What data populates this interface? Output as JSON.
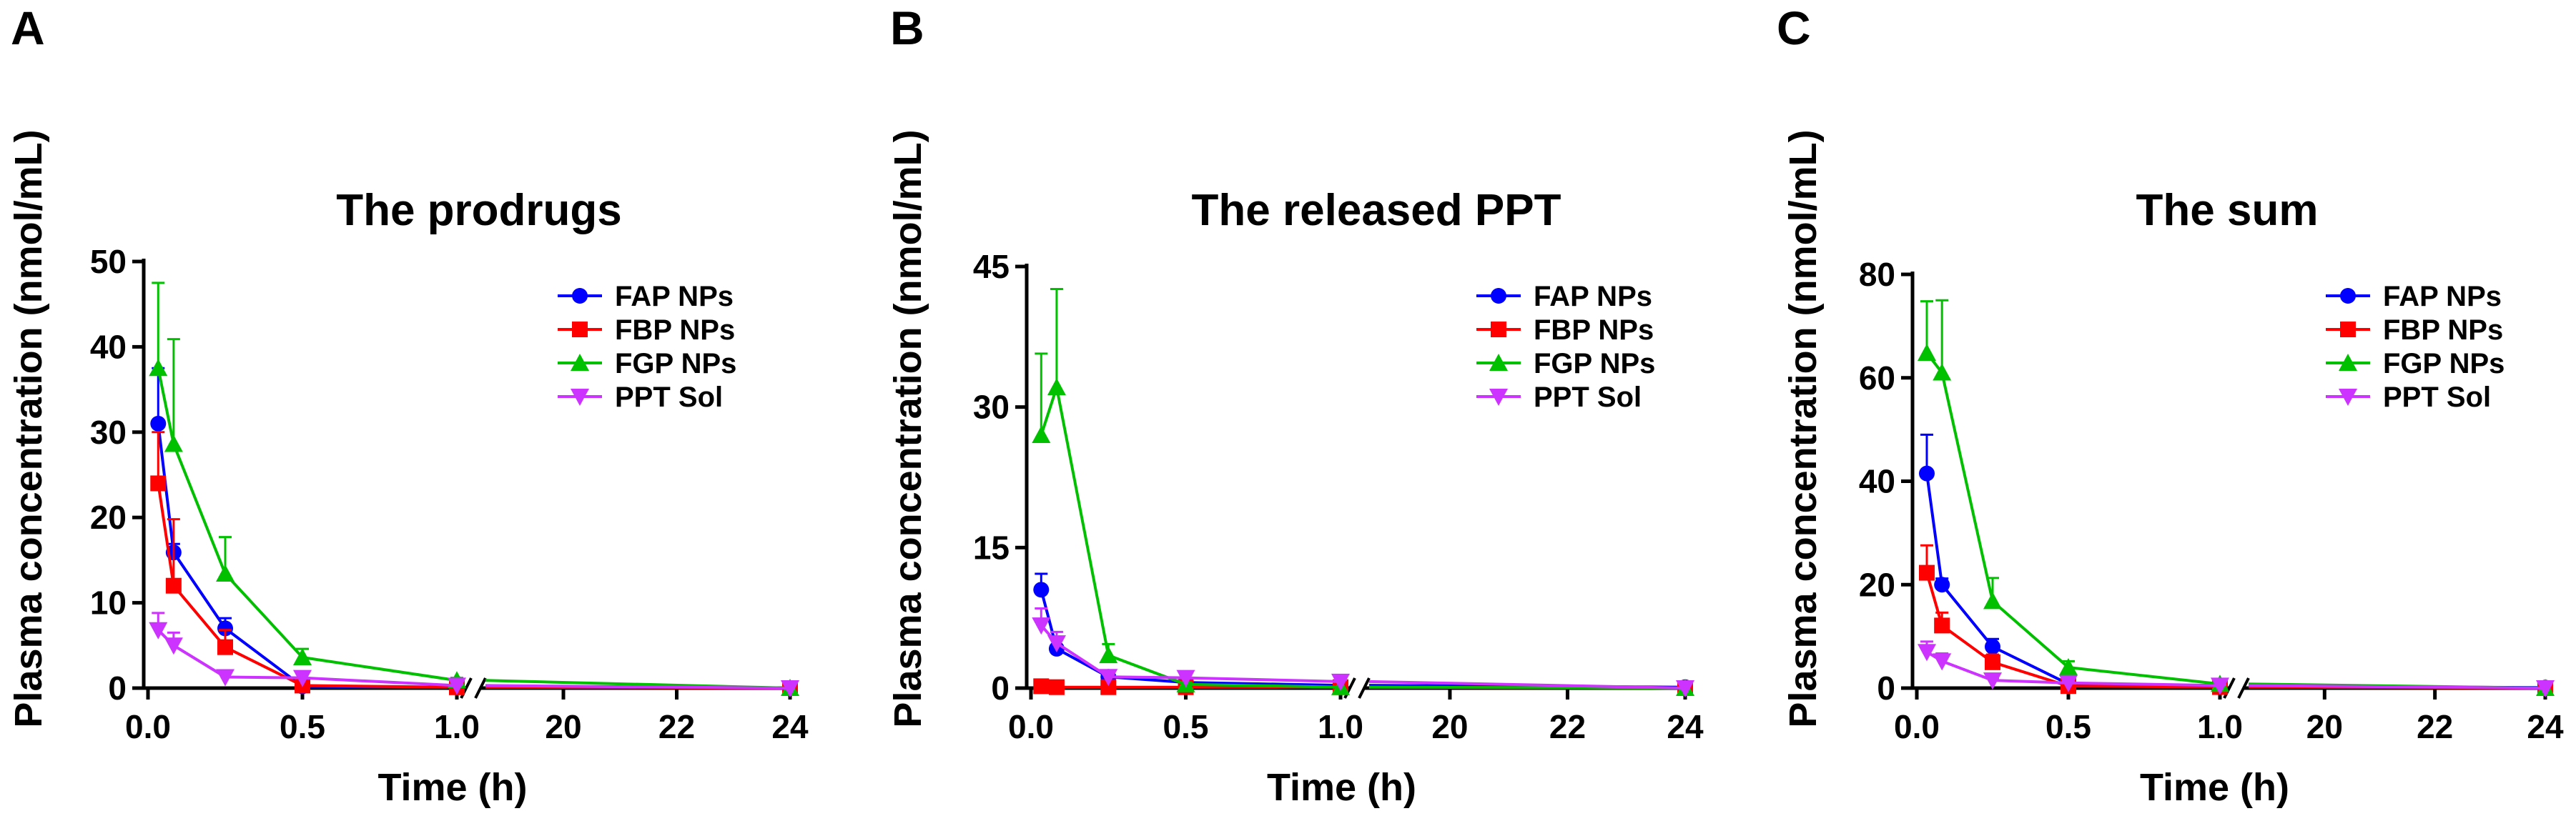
{
  "chart_data": [
    {
      "type": "line",
      "panel": "A",
      "title": "The prodrugs",
      "xlabel": "Time (h)",
      "ylabel": "Plasma concentration (nmol/mL)",
      "ylim": [
        0,
        50
      ],
      "yticks": [
        0,
        10,
        20,
        30,
        40,
        50
      ],
      "xticks_left": [
        "0.0",
        "0.5",
        "1.0"
      ],
      "xticks_right": [
        "20",
        "22",
        "24"
      ],
      "xbreak": {
        "left_range": [
          0,
          1.0
        ],
        "right_range": [
          18.7,
          24
        ]
      },
      "series": [
        {
          "name": "FAP NPs",
          "color": "#0000ff",
          "marker": "circle",
          "x": [
            0.033,
            0.083,
            0.25,
            0.5,
            1.0,
            24
          ],
          "y": [
            31.0,
            15.9,
            7.0,
            0.2,
            0.1,
            0.0
          ],
          "err": [
            6.5,
            1.0,
            1.2,
            0.1,
            0.0,
            0.0
          ]
        },
        {
          "name": "FBP NPs",
          "color": "#ff0000",
          "marker": "square",
          "x": [
            0.033,
            0.083,
            0.25,
            0.5,
            1.0,
            24
          ],
          "y": [
            24.0,
            12.0,
            4.8,
            0.3,
            0.1,
            0.0
          ],
          "err": [
            6.0,
            7.8,
            2.0,
            0.2,
            0.0,
            0.0
          ]
        },
        {
          "name": "FGP NPs",
          "color": "#00c000",
          "marker": "triangle-up",
          "x": [
            0.033,
            0.083,
            0.25,
            0.5,
            1.0,
            24
          ],
          "y": [
            37.5,
            28.6,
            13.4,
            3.6,
            0.9,
            0.0
          ],
          "err": [
            10.0,
            12.3,
            4.3,
            1.0,
            0.3,
            0.0
          ]
        },
        {
          "name": "PPT Sol",
          "color": "#cc33ff",
          "marker": "triangle-down",
          "x": [
            0.033,
            0.083,
            0.25,
            0.5,
            1.0,
            24
          ],
          "y": [
            6.8,
            5.0,
            1.3,
            1.2,
            0.3,
            0.0
          ],
          "err": [
            2.0,
            1.5,
            0.4,
            0.4,
            0.1,
            0.0
          ]
        }
      ]
    },
    {
      "type": "line",
      "panel": "B",
      "title": "The released PPT",
      "xlabel": "Time (h)",
      "ylabel": "Plasma concentration (nmol/mL)",
      "ylim": [
        0,
        45
      ],
      "yticks": [
        0,
        15,
        30,
        45
      ],
      "xticks_left": [
        "0.0",
        "0.5",
        "1.0"
      ],
      "xticks_right": [
        "20",
        "22",
        "24"
      ],
      "xbreak": {
        "left_range": [
          0,
          1.0
        ],
        "right_range": [
          18.7,
          24
        ]
      },
      "series": [
        {
          "name": "FAP NPs",
          "color": "#0000ff",
          "marker": "circle",
          "x": [
            0.033,
            0.083,
            0.25,
            0.5,
            1.0,
            24
          ],
          "y": [
            10.5,
            4.2,
            1.2,
            0.6,
            0.3,
            0.1
          ],
          "err": [
            1.7,
            1.0,
            0.3,
            0.2,
            0.1,
            0.0
          ]
        },
        {
          "name": "FBP NPs",
          "color": "#ff0000",
          "marker": "square",
          "x": [
            0.033,
            0.083,
            0.25,
            0.5,
            1.0,
            24
          ],
          "y": [
            0.2,
            0.1,
            0.1,
            0.1,
            0.1,
            0.0
          ],
          "err": [
            0.1,
            0.0,
            0.0,
            0.0,
            0.0,
            0.0
          ]
        },
        {
          "name": "FGP NPs",
          "color": "#00c000",
          "marker": "triangle-up",
          "x": [
            0.033,
            0.083,
            0.25,
            0.5,
            1.0,
            24
          ],
          "y": [
            27.0,
            32.1,
            3.5,
            0.4,
            0.1,
            0.0
          ],
          "err": [
            8.7,
            10.5,
            1.2,
            0.2,
            0.0,
            0.0
          ]
        },
        {
          "name": "PPT Sol",
          "color": "#cc33ff",
          "marker": "triangle-down",
          "x": [
            0.033,
            0.083,
            0.25,
            0.5,
            1.0,
            24
          ],
          "y": [
            6.7,
            4.8,
            1.2,
            1.1,
            0.7,
            0.0
          ],
          "err": [
            1.8,
            1.2,
            0.3,
            0.3,
            0.2,
            0.0
          ]
        }
      ]
    },
    {
      "type": "line",
      "panel": "C",
      "title": "The sum",
      "xlabel": "Time (h)",
      "ylabel": "Plasma concentration (nmol/mL)",
      "ylim": [
        0,
        80
      ],
      "yticks": [
        0,
        20,
        40,
        60,
        80
      ],
      "xticks_left": [
        "0.0",
        "0.5",
        "1.0"
      ],
      "xticks_right": [
        "20",
        "22",
        "24"
      ],
      "xbreak": {
        "left_range": [
          0,
          1.0
        ],
        "right_range": [
          18.7,
          24
        ]
      },
      "series": [
        {
          "name": "FAP NPs",
          "color": "#0000ff",
          "marker": "circle",
          "x": [
            0.033,
            0.083,
            0.25,
            0.5,
            1.0,
            24
          ],
          "y": [
            41.5,
            20.0,
            8.0,
            0.8,
            0.4,
            0.1
          ],
          "err": [
            7.5,
            1.2,
            1.5,
            0.3,
            0.1,
            0.0
          ]
        },
        {
          "name": "FBP NPs",
          "color": "#ff0000",
          "marker": "square",
          "x": [
            0.033,
            0.083,
            0.25,
            0.5,
            1.0,
            24
          ],
          "y": [
            22.3,
            12.1,
            5.0,
            0.4,
            0.2,
            0.0
          ],
          "err": [
            5.3,
            2.5,
            1.5,
            0.2,
            0.1,
            0.0
          ]
        },
        {
          "name": "FGP NPs",
          "color": "#00c000",
          "marker": "triangle-up",
          "x": [
            0.033,
            0.083,
            0.25,
            0.5,
            1.0,
            24
          ],
          "y": [
            64.8,
            61.0,
            16.8,
            4.0,
            0.8,
            0.0
          ],
          "err": [
            10.0,
            14.0,
            4.5,
            1.2,
            0.3,
            0.0
          ]
        },
        {
          "name": "PPT Sol",
          "color": "#cc33ff",
          "marker": "triangle-down",
          "x": [
            0.033,
            0.083,
            0.25,
            0.5,
            1.0,
            24
          ],
          "y": [
            7.0,
            5.2,
            1.5,
            1.0,
            0.5,
            0.0
          ],
          "err": [
            2.0,
            1.5,
            0.4,
            0.3,
            0.1,
            0.0
          ]
        }
      ]
    }
  ]
}
